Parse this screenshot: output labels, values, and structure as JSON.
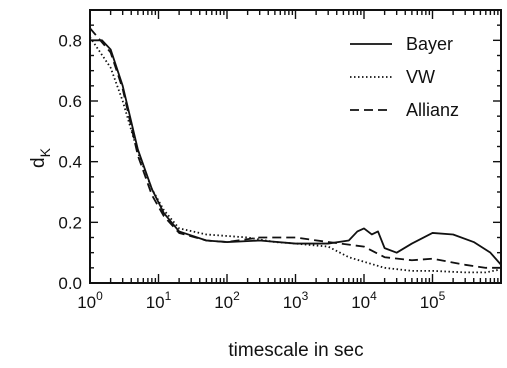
{
  "chart_data": {
    "type": "line",
    "xscale": "log",
    "xlim": [
      1,
      1000000
    ],
    "ylim": [
      0,
      0.9
    ],
    "xlabel": "timescale in sec",
    "ylabel": "d",
    "ylabel_subscript": "K",
    "x_ticks": [
      1,
      10,
      100,
      1000,
      10000,
      100000
    ],
    "x_tick_labels": [
      {
        "base": "10",
        "exp": "0"
      },
      {
        "base": "10",
        "exp": "1"
      },
      {
        "base": "10",
        "exp": "2"
      },
      {
        "base": "10",
        "exp": "3"
      },
      {
        "base": "10",
        "exp": "4"
      },
      {
        "base": "10",
        "exp": "5"
      }
    ],
    "y_ticks": [
      0,
      0.2,
      0.4,
      0.6,
      0.8
    ],
    "y_tick_labels": [
      "0.0",
      "0.2",
      "0.4",
      "0.6",
      "0.8"
    ],
    "grid": false,
    "legend_position": "top-right",
    "series": [
      {
        "name": "Bayer",
        "style": "solid",
        "points": [
          [
            1,
            0.8
          ],
          [
            1.5,
            0.8
          ],
          [
            2,
            0.77
          ],
          [
            3,
            0.65
          ],
          [
            5,
            0.44
          ],
          [
            8,
            0.31
          ],
          [
            12,
            0.23
          ],
          [
            20,
            0.17
          ],
          [
            50,
            0.14
          ],
          [
            100,
            0.135
          ],
          [
            300,
            0.14
          ],
          [
            1000,
            0.13
          ],
          [
            3000,
            0.13
          ],
          [
            6000,
            0.14
          ],
          [
            8000,
            0.17
          ],
          [
            10000,
            0.18
          ],
          [
            13000,
            0.16
          ],
          [
            16000,
            0.17
          ],
          [
            20000,
            0.115
          ],
          [
            30000,
            0.1
          ],
          [
            50000,
            0.13
          ],
          [
            100000,
            0.165
          ],
          [
            200000,
            0.16
          ],
          [
            400000,
            0.135
          ],
          [
            700000,
            0.1
          ],
          [
            1000000,
            0.06
          ]
        ]
      },
      {
        "name": "VW",
        "style": "dotted",
        "points": [
          [
            1,
            0.81
          ],
          [
            2,
            0.71
          ],
          [
            3,
            0.6
          ],
          [
            5,
            0.43
          ],
          [
            8,
            0.31
          ],
          [
            12,
            0.24
          ],
          [
            20,
            0.18
          ],
          [
            50,
            0.16
          ],
          [
            100,
            0.155
          ],
          [
            200,
            0.15
          ],
          [
            500,
            0.135
          ],
          [
            1000,
            0.13
          ],
          [
            3000,
            0.12
          ],
          [
            6000,
            0.085
          ],
          [
            10000,
            0.07
          ],
          [
            20000,
            0.05
          ],
          [
            50000,
            0.04
          ],
          [
            100000,
            0.04
          ],
          [
            300000,
            0.035
          ],
          [
            600000,
            0.035
          ],
          [
            1000000,
            0.045
          ]
        ]
      },
      {
        "name": "Allianz",
        "style": "dashed",
        "points": [
          [
            1,
            0.84
          ],
          [
            2,
            0.76
          ],
          [
            3,
            0.64
          ],
          [
            5,
            0.42
          ],
          [
            8,
            0.29
          ],
          [
            12,
            0.22
          ],
          [
            20,
            0.165
          ],
          [
            50,
            0.14
          ],
          [
            100,
            0.135
          ],
          [
            300,
            0.15
          ],
          [
            1000,
            0.15
          ],
          [
            3000,
            0.135
          ],
          [
            10000,
            0.12
          ],
          [
            20000,
            0.085
          ],
          [
            50000,
            0.075
          ],
          [
            100000,
            0.08
          ],
          [
            300000,
            0.06
          ],
          [
            600000,
            0.05
          ],
          [
            1000000,
            0.05
          ]
        ]
      }
    ]
  }
}
